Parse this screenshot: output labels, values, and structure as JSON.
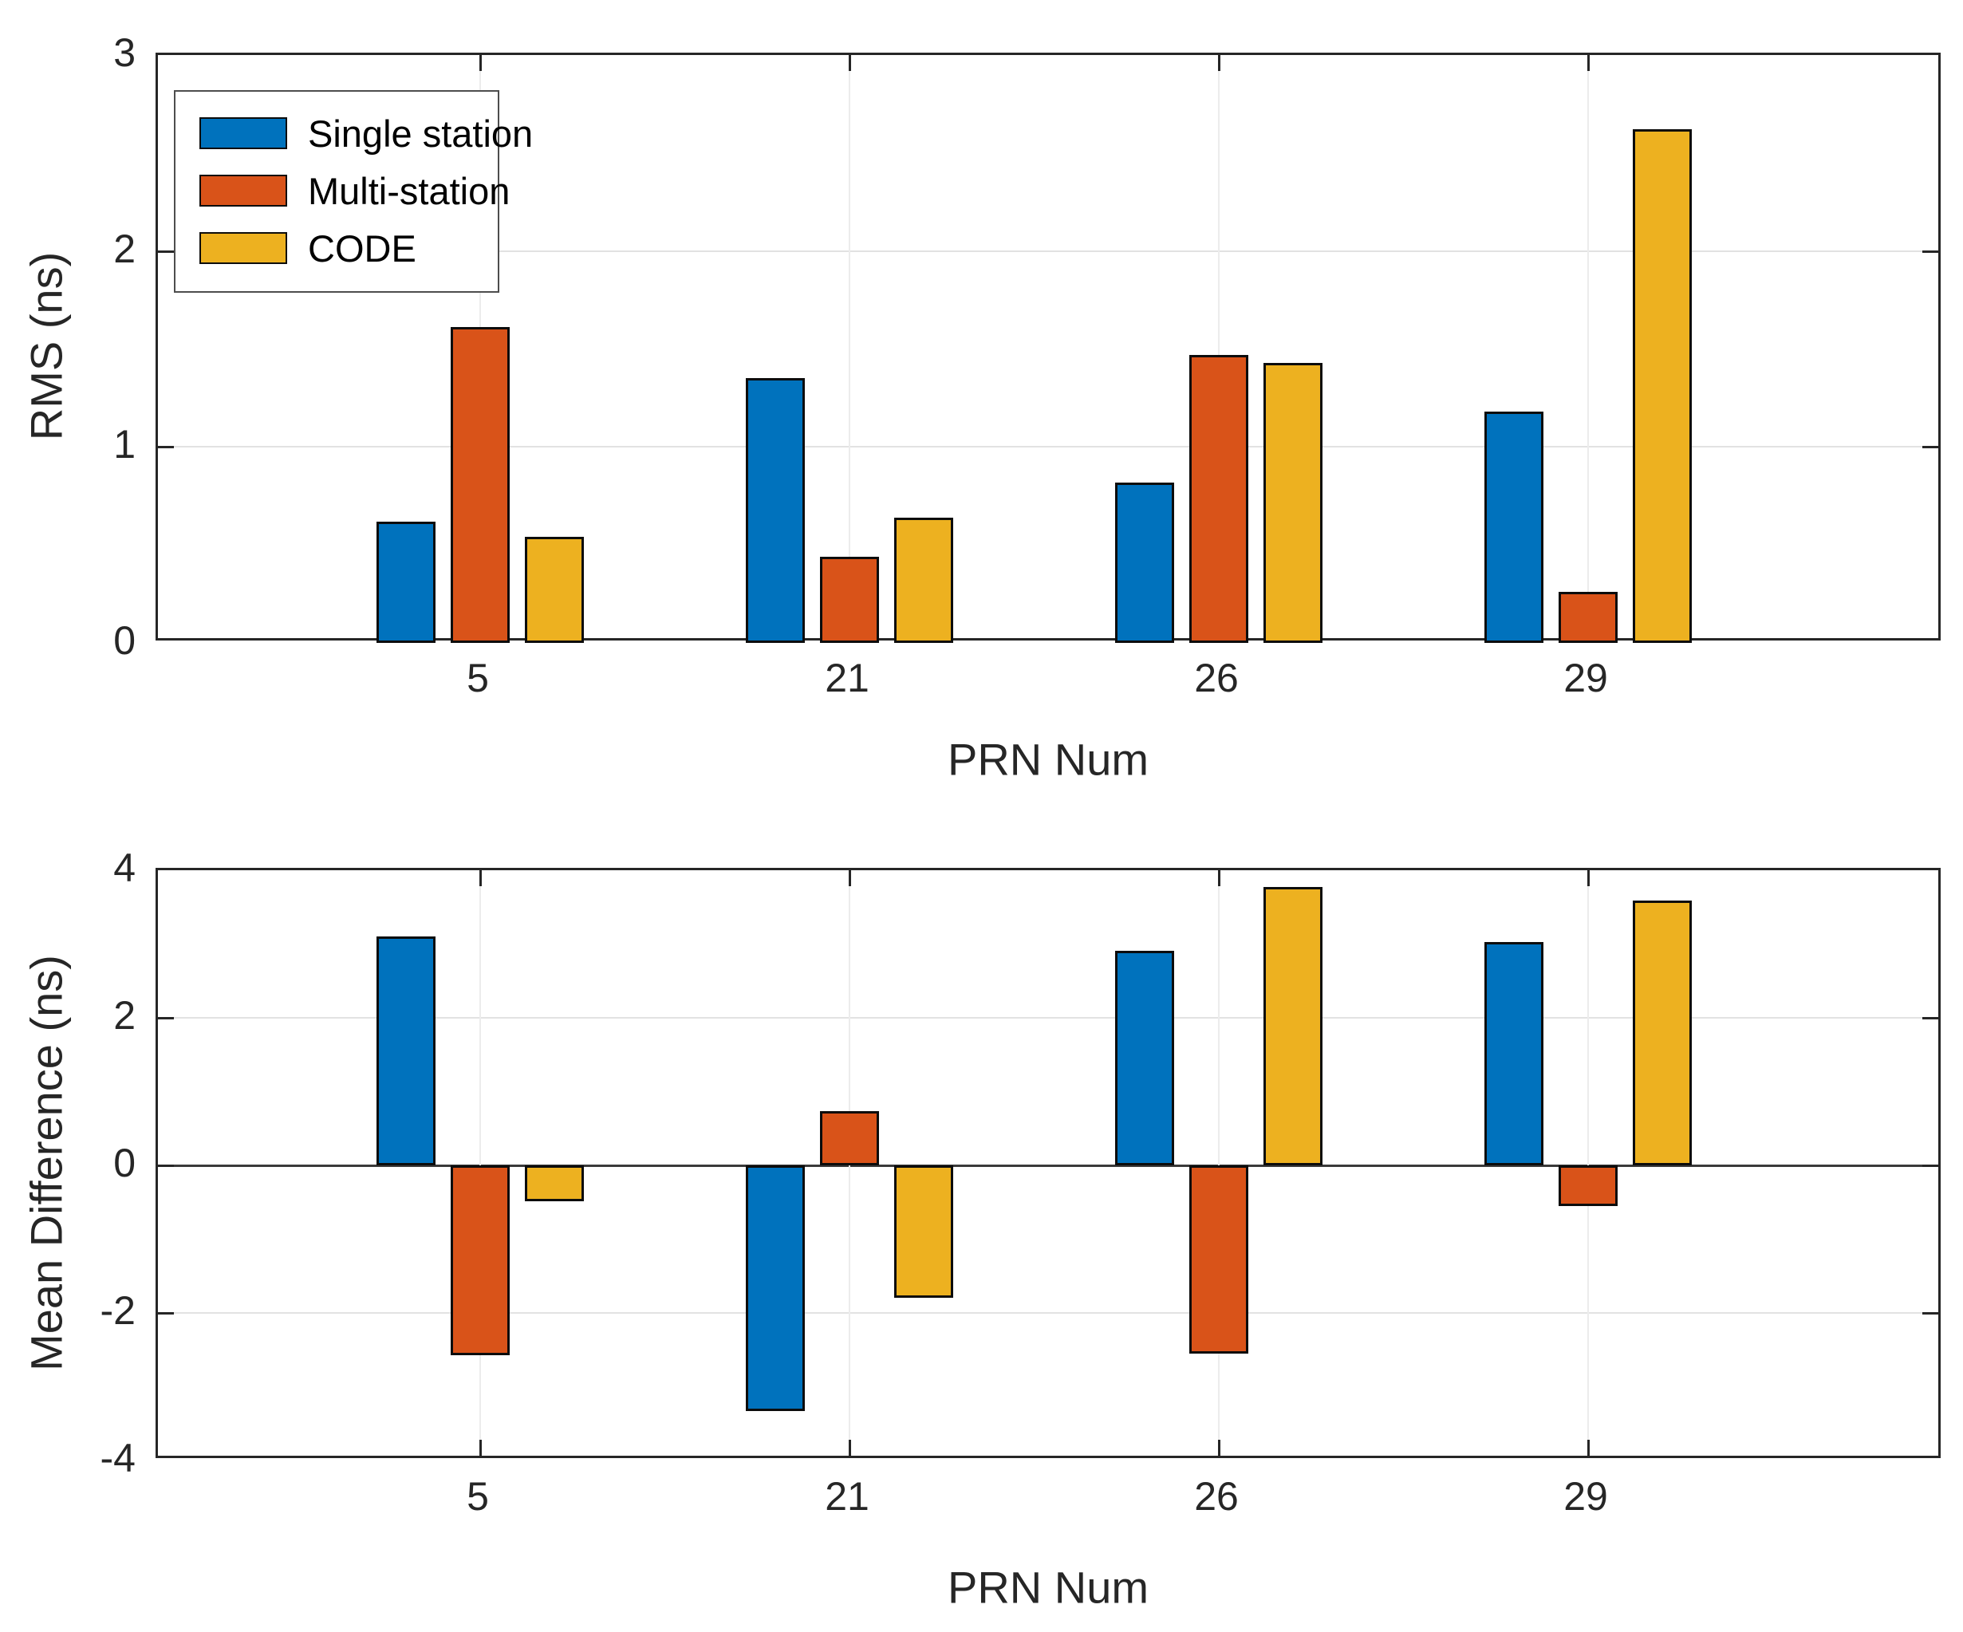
{
  "colors": {
    "single_station": "#0072BD",
    "multi_station": "#D95319",
    "code": "#EDB120",
    "axis": "#262626",
    "grid": "#e2e2e2",
    "x_grid": "#ececec",
    "bar_edge": "#0c0c0c",
    "background": "#ffffff"
  },
  "legend": {
    "entries": [
      {
        "label": "Single station",
        "color": "#0072BD"
      },
      {
        "label": "Multi-station",
        "color": "#D95319"
      },
      {
        "label": "CODE",
        "color": "#EDB120"
      }
    ]
  },
  "chart_data": [
    {
      "type": "bar",
      "title": "",
      "xlabel": "PRN Num",
      "ylabel": "RMS (ns)",
      "categories": [
        "5",
        "21",
        "26",
        "29"
      ],
      "series": [
        {
          "name": "Single station",
          "color": "#0072BD",
          "values": [
            0.62,
            1.35,
            0.82,
            1.18
          ]
        },
        {
          "name": "Multi-station",
          "color": "#D95319",
          "values": [
            1.61,
            0.44,
            1.47,
            0.26
          ]
        },
        {
          "name": "CODE",
          "color": "#EDB120",
          "values": [
            0.54,
            0.64,
            1.43,
            2.62
          ]
        }
      ],
      "ylim": [
        0,
        3
      ],
      "yticks": [
        0,
        1,
        2,
        3
      ],
      "grid": true,
      "legend_position": "northwest"
    },
    {
      "type": "bar",
      "title": "",
      "xlabel": "PRN Num",
      "ylabel": "Mean Difference (ns)",
      "categories": [
        "5",
        "21",
        "26",
        "29"
      ],
      "series": [
        {
          "name": "Single station",
          "color": "#0072BD",
          "values": [
            3.1,
            -3.33,
            2.91,
            3.03
          ]
        },
        {
          "name": "Multi-station",
          "color": "#D95319",
          "values": [
            -2.57,
            0.73,
            -2.55,
            -0.55
          ]
        },
        {
          "name": "CODE",
          "color": "#EDB120",
          "values": [
            -0.49,
            -1.79,
            3.77,
            3.59
          ]
        }
      ],
      "ylim": [
        -4,
        4
      ],
      "yticks": [
        -4,
        -2,
        0,
        2,
        4
      ],
      "grid": true,
      "legend_position": "none"
    }
  ]
}
